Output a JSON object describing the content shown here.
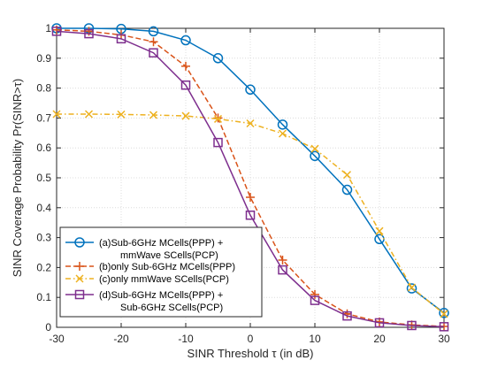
{
  "chart_data": {
    "type": "line",
    "xlabel": "SINR Threshold τ (in dB)",
    "ylabel": "SINR Coverage Probability Pr(SINR>τ)",
    "xlim": [
      -30,
      30
    ],
    "ylim": [
      0,
      1
    ],
    "xticks": [
      -30,
      -20,
      -10,
      0,
      10,
      20,
      30
    ],
    "yticks": [
      0,
      0.1,
      0.2,
      0.3,
      0.4,
      0.5,
      0.6,
      0.7,
      0.8,
      0.9,
      1
    ],
    "xtick_labels": [
      "-30",
      "-20",
      "-10",
      "0",
      "10",
      "20",
      "30"
    ],
    "ytick_labels": [
      "0",
      "0.1",
      "0.2",
      "0.3",
      "0.4",
      "0.5",
      "0.6",
      "0.7",
      "0.8",
      "0.9",
      "1"
    ],
    "grid": true,
    "legend_position": "lower-left",
    "series": [
      {
        "name": "(a)Sub-6GHz MCells(PPP) +",
        "name_line2": "mmWave SCells(PCP)",
        "color": "#0072BD",
        "linestyle": "solid",
        "marker": "circle",
        "x": [
          -30,
          -25,
          -20,
          -15,
          -10,
          -5,
          0,
          5,
          10,
          15,
          20,
          25,
          30
        ],
        "y": [
          1.0,
          1.0,
          0.998,
          0.99,
          0.96,
          0.9,
          0.795,
          0.678,
          0.573,
          0.46,
          0.295,
          0.13,
          0.048
        ]
      },
      {
        "name": "(b)only Sub-6GHz MCells(PPP)",
        "color": "#D95319",
        "linestyle": "dashed",
        "marker": "plus",
        "x": [
          -30,
          -25,
          -20,
          -15,
          -10,
          -5,
          0,
          5,
          10,
          15,
          20,
          25,
          30
        ],
        "y": [
          0.995,
          0.99,
          0.978,
          0.955,
          0.873,
          0.7,
          0.435,
          0.225,
          0.11,
          0.045,
          0.018,
          0.008,
          0.003
        ]
      },
      {
        "name": "(c)only mmWave SCells(PCP)",
        "color": "#EDB120",
        "linestyle": "dashdot",
        "marker": "x",
        "x": [
          -30,
          -25,
          -20,
          -15,
          -10,
          -5,
          0,
          5,
          10,
          15,
          20,
          25,
          30
        ],
        "y": [
          0.713,
          0.713,
          0.712,
          0.71,
          0.707,
          0.697,
          0.682,
          0.648,
          0.597,
          0.51,
          0.322,
          0.133,
          0.045
        ]
      },
      {
        "name": "(d)Sub-6GHz MCells(PPP) +",
        "name_line2": "Sub-6GHz SCells(PCP)",
        "color": "#7E2F8E",
        "linestyle": "solid",
        "marker": "square",
        "x": [
          -30,
          -25,
          -20,
          -15,
          -10,
          -5,
          0,
          5,
          10,
          15,
          20,
          25,
          30
        ],
        "y": [
          0.99,
          0.982,
          0.965,
          0.918,
          0.81,
          0.618,
          0.375,
          0.192,
          0.09,
          0.038,
          0.015,
          0.006,
          0.002
        ]
      }
    ]
  }
}
